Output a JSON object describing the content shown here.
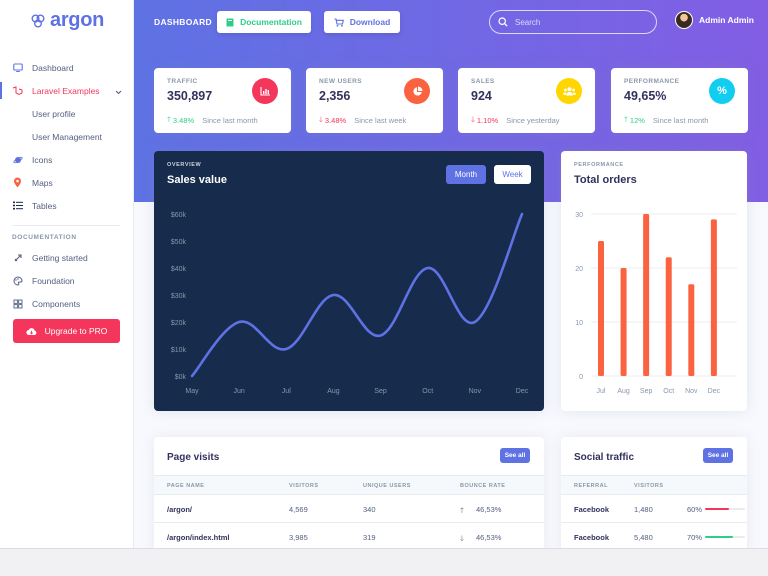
{
  "brand": {
    "name": "argon"
  },
  "sidebar": {
    "items": [
      {
        "label": "Dashboard",
        "icon": "monitor-icon"
      },
      {
        "label": "Laravel Examples",
        "icon": "laravel-icon"
      },
      {
        "label": "User profile"
      },
      {
        "label": "User Management"
      },
      {
        "label": "Icons",
        "icon": "planet-icon"
      },
      {
        "label": "Maps",
        "icon": "pin-icon"
      },
      {
        "label": "Tables",
        "icon": "list-icon"
      }
    ],
    "doc_heading": "DOCUMENTATION",
    "doc_items": [
      {
        "label": "Getting started",
        "icon": "rocket-icon"
      },
      {
        "label": "Foundation",
        "icon": "palette-icon"
      },
      {
        "label": "Components",
        "icon": "components-icon"
      }
    ],
    "upgrade_label": "Upgrade to PRO"
  },
  "header": {
    "title": "DASHBOARD",
    "doc_button": "Documentation",
    "download_button": "Download",
    "search_placeholder": "Search",
    "user_name": "Admin Admin"
  },
  "stats": [
    {
      "label": "TRAFFIC",
      "value": "350,897",
      "change": "3.48%",
      "direction": "up",
      "since": "Since last month",
      "color": "#f5365c",
      "icon": "chart-bar-icon"
    },
    {
      "label": "NEW USERS",
      "value": "2,356",
      "change": "3.48%",
      "direction": "down",
      "since": "Since last week",
      "color": "#fb6340",
      "icon": "chart-pie-icon"
    },
    {
      "label": "SALES",
      "value": "924",
      "change": "1.10%",
      "direction": "down",
      "since": "Since yesterday",
      "color": "#ffd600",
      "icon": "users-icon"
    },
    {
      "label": "PERFORMANCE",
      "value": "49,65%",
      "change": "12%",
      "direction": "up",
      "since": "Since last month",
      "color": "#11cdef",
      "icon": "percent-icon"
    }
  ],
  "sales_card": {
    "kicker": "OVERVIEW",
    "title": "Sales value",
    "month_label": "Month",
    "week_label": "Week"
  },
  "orders_card": {
    "kicker": "PERFORMANCE",
    "title": "Total orders"
  },
  "chart_data": [
    {
      "type": "line",
      "title": "Sales value",
      "categories": [
        "May",
        "Jun",
        "Jul",
        "Aug",
        "Sep",
        "Oct",
        "Nov",
        "Dec"
      ],
      "series": [
        {
          "values": [
            0,
            20,
            10,
            30,
            15,
            40,
            20,
            60
          ]
        }
      ],
      "ylim": [
        0,
        60
      ],
      "yticks": [
        "$0k",
        "$10k",
        "$20k",
        "$30k",
        "$40k",
        "$50k",
        "$60k"
      ],
      "grid": false,
      "color": "#5e72e4"
    },
    {
      "type": "bar",
      "title": "Total orders",
      "categories": [
        "Jul",
        "Aug",
        "Sep",
        "Oct",
        "Nov",
        "Dec"
      ],
      "values": [
        25,
        20,
        30,
        22,
        17,
        29
      ],
      "ylim": [
        0,
        30
      ],
      "yticks": [
        "0",
        "10",
        "20",
        "30"
      ],
      "grid": true,
      "color": "#fb6340"
    }
  ],
  "page_visits": {
    "title": "Page visits",
    "see_all": "See all",
    "columns": [
      "PAGE NAME",
      "VISITORS",
      "UNIQUE USERS",
      "BOUNCE RATE"
    ],
    "rows": [
      {
        "page": "/argon/",
        "visitors": "4,569",
        "unique": "340",
        "bounce": "46,53%",
        "direction": "up"
      },
      {
        "page": "/argon/index.html",
        "visitors": "3,985",
        "unique": "319",
        "bounce": "46,53%",
        "direction": "down"
      }
    ]
  },
  "social_traffic": {
    "title": "Social traffic",
    "see_all": "See all",
    "columns": [
      "REFERRAL",
      "VISITORS"
    ],
    "rows": [
      {
        "referral": "Facebook",
        "visitors": "1,480",
        "percent": "60%",
        "fill": 60,
        "color": "#f5365c"
      },
      {
        "referral": "Facebook",
        "visitors": "5,480",
        "percent": "70%",
        "fill": 70,
        "color": "#2dce89"
      }
    ]
  }
}
